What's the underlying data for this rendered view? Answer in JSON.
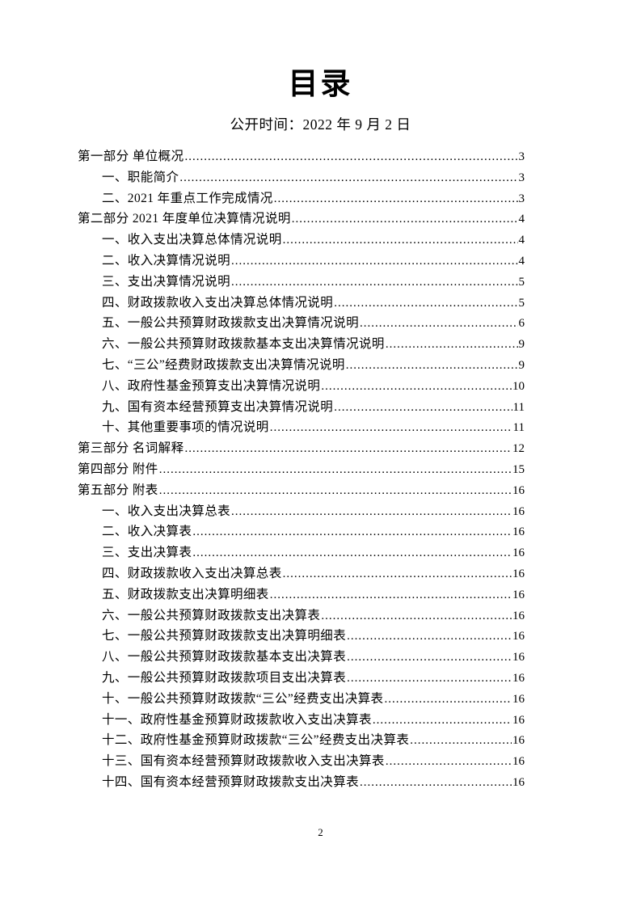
{
  "colors": {
    "text": "#000000",
    "background": "#ffffff"
  },
  "header": {
    "title": "目录",
    "publish_date": "公开时间：2022 年 9 月 2 日"
  },
  "toc": {
    "entries": [
      {
        "text": "第一部分 单位概况",
        "page": "3",
        "level": 0
      },
      {
        "text": "一、职能简介",
        "page": "3",
        "level": 1
      },
      {
        "text": "二、2021 年重点工作完成情况",
        "page": "3",
        "level": 1
      },
      {
        "text": "第二部分 2021 年度单位决算情况说明",
        "page": "4",
        "level": 0
      },
      {
        "text": "一、收入支出决算总体情况说明",
        "page": "4",
        "level": 1
      },
      {
        "text": "二、收入决算情况说明",
        "page": "4",
        "level": 1
      },
      {
        "text": "三、支出决算情况说明",
        "page": "5",
        "level": 1
      },
      {
        "text": "四、财政拨款收入支出决算总体情况说明",
        "page": "5",
        "level": 1
      },
      {
        "text": "五、一般公共预算财政拨款支出决算情况说明",
        "page": "6",
        "level": 1
      },
      {
        "text": "六、一般公共预算财政拨款基本支出决算情况说明",
        "page": "9",
        "level": 1
      },
      {
        "text": "七、“三公”经费财政拨款支出决算情况说明",
        "page": "9",
        "level": 1
      },
      {
        "text": "八、政府性基金预算支出决算情况说明",
        "page": "10",
        "level": 1
      },
      {
        "text": "九、国有资本经营预算支出决算情况说明",
        "page": "11",
        "level": 1
      },
      {
        "text": "十、其他重要事项的情况说明",
        "page": "11",
        "level": 1
      },
      {
        "text": "第三部分 名词解释",
        "page": "12",
        "level": 0
      },
      {
        "text": "第四部分 附件",
        "page": "15",
        "level": 0
      },
      {
        "text": "第五部分 附表",
        "page": "16",
        "level": 0
      },
      {
        "text": "一、收入支出决算总表",
        "page": "16",
        "level": 1
      },
      {
        "text": "二、收入决算表",
        "page": "16",
        "level": 1
      },
      {
        "text": "三、支出决算表",
        "page": "16",
        "level": 1
      },
      {
        "text": "四、财政拨款收入支出决算总表",
        "page": "16",
        "level": 1
      },
      {
        "text": "五、财政拨款支出决算明细表",
        "page": "16",
        "level": 1
      },
      {
        "text": "六、一般公共预算财政拨款支出决算表",
        "page": "16",
        "level": 1
      },
      {
        "text": "七、一般公共预算财政拨款支出决算明细表",
        "page": "16",
        "level": 1
      },
      {
        "text": "八、一般公共预算财政拨款基本支出决算表",
        "page": "16",
        "level": 1
      },
      {
        "text": "九、一般公共预算财政拨款项目支出决算表",
        "page": "16",
        "level": 1
      },
      {
        "text": "十、一般公共预算财政拨款“三公”经费支出决算表",
        "page": "16",
        "level": 1
      },
      {
        "text": "十一、政府性基金预算财政拨款收入支出决算表",
        "page": "16",
        "level": 1
      },
      {
        "text": "十二、政府性基金预算财政拨款“三公”经费支出决算表",
        "page": "16",
        "level": 1
      },
      {
        "text": "十三、国有资本经营预算财政拨款收入支出决算表",
        "page": "16",
        "level": 1
      },
      {
        "text": "十四、国有资本经营预算财政拨款支出决算表",
        "page": "16",
        "level": 1
      }
    ]
  },
  "footer": {
    "page_number": "2"
  }
}
